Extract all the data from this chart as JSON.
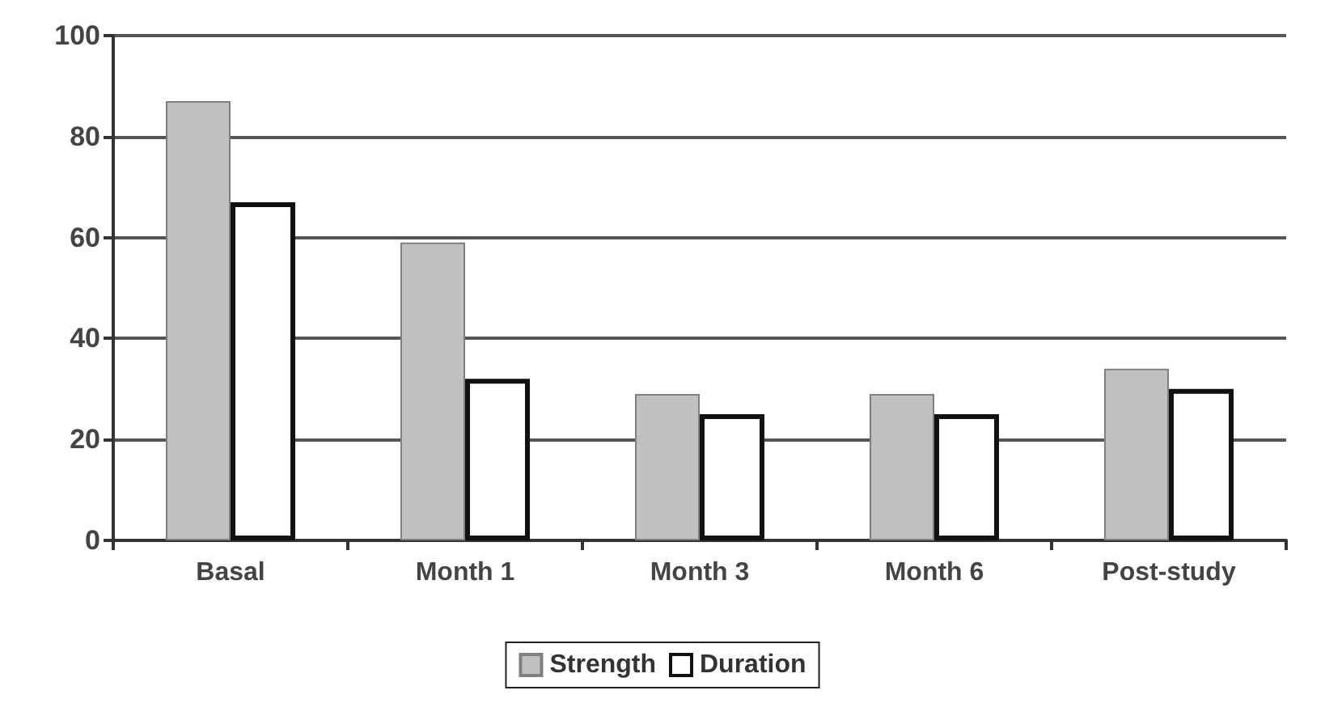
{
  "chart_data": {
    "type": "bar",
    "categories": [
      "Basal",
      "Month 1",
      "Month 3",
      "Month 6",
      "Post-study"
    ],
    "series": [
      {
        "name": "Strength",
        "color": "#c0c0c0",
        "values": [
          87,
          59,
          29,
          29,
          34
        ]
      },
      {
        "name": "Duration",
        "color": "#ffffff",
        "values": [
          67,
          32,
          25,
          25,
          30
        ]
      }
    ],
    "ylim": [
      0,
      100
    ],
    "yticks": [
      0,
      20,
      40,
      60,
      80,
      100
    ],
    "grid": "y",
    "legend": "bottom"
  }
}
